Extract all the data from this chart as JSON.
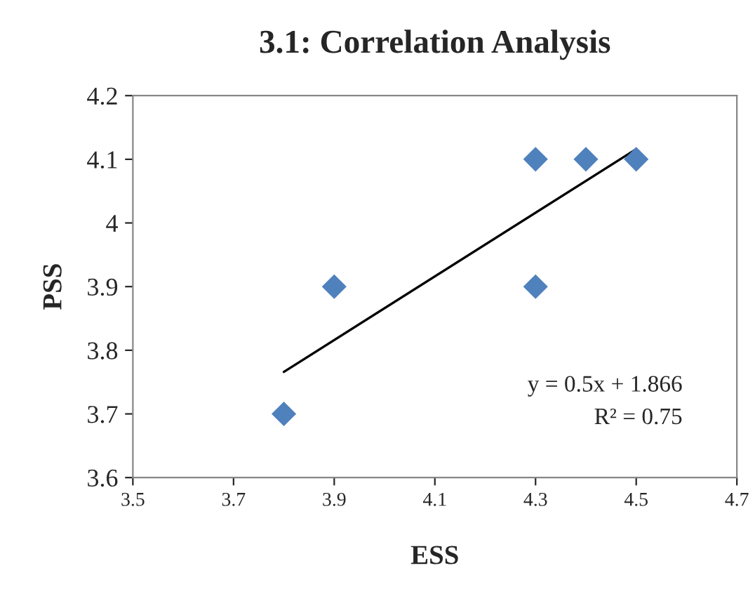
{
  "chart_data": {
    "type": "scatter",
    "title": "3.1: Correlation Analysis",
    "xlabel": "ESS",
    "ylabel": "PSS",
    "series": [
      {
        "color": "#4f81bd",
        "marker": "diamond",
        "x": [
          3.8,
          3.9,
          4.3,
          4.3,
          4.4,
          4.5
        ],
        "values": [
          3.7,
          3.9,
          4.1,
          3.9,
          4.1,
          4.1
        ]
      },
      {
        "type": "line",
        "color": "#000000",
        "line_style": "solid",
        "marker": "none",
        "x": [
          3.8,
          4.5
        ],
        "values": [
          3.766,
          4.116
        ]
      }
    ],
    "xlim": [
      3.5,
      4.7
    ],
    "xticks": [
      3.5,
      3.7,
      3.9,
      4.1,
      4.3,
      4.5,
      4.7
    ],
    "ylim": [
      3.6,
      4.2
    ],
    "yticks": [
      3.6,
      3.7,
      3.8,
      3.9,
      4,
      4.1,
      4.2
    ],
    "grid": false,
    "legend": false,
    "annotations": [
      "y = 0.5x + 1.866",
      "R² = 0.75"
    ]
  }
}
